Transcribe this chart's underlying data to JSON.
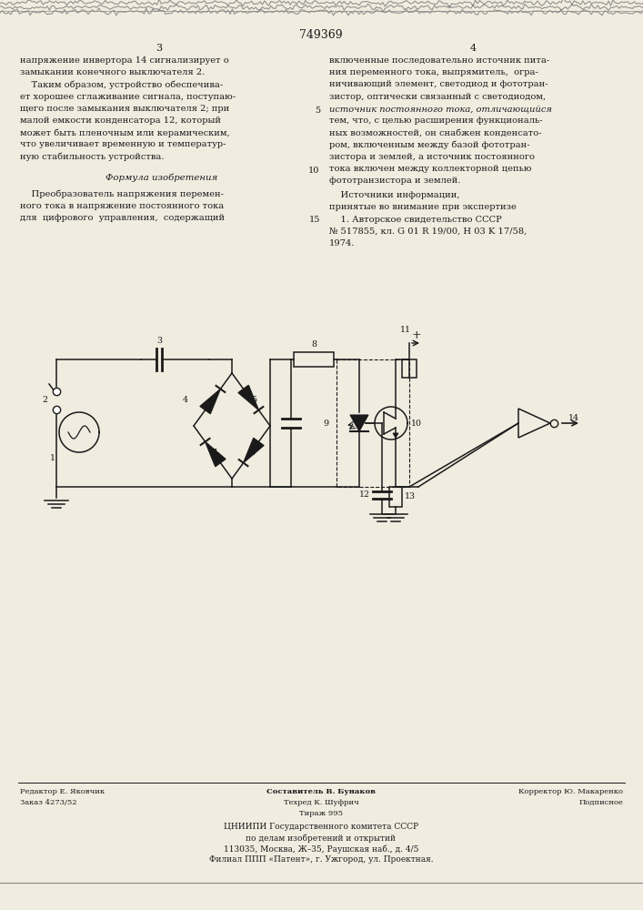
{
  "patent_number": "749369",
  "page_cols": [
    "3",
    "4"
  ],
  "col1_text": [
    "напряжение инвертора 14 сигнализирует о",
    "замыкании конечного выключателя 2.",
    "    Таким образом, устройство обеспечива-",
    "ет хорошее сглаживание сигнала, поступаю-",
    "щего после замыкания выключателя 2; при",
    "малой емкости конденсатора 12, который",
    "может быть пленочным или керамическим,",
    "что увеличивает временную и температур-",
    "ную стабильность устройства."
  ],
  "formula_header": "Формула изобретения",
  "formula_text": [
    "    Преобразователь напряжения перемен-",
    "ного тока в напряжение постоянного тока",
    "для  цифрового  управления,  содержащий"
  ],
  "col2_text_normal": [
    "включенные последовательно источник пита-",
    "ния переменного тока, выпрямитель,  огра-",
    "ничивающий элемент, светодиод и фототран-",
    "зистор, оптически связанный с светодиодом,"
  ],
  "col2_text_italic": "источник постоянного тока, отличающийся",
  "col2_text_rest": [
    "тем, что, с целью расширения функциональ-",
    "ных возможностей, он снабжен конденсато-",
    "ром, включенным между базой фототран-",
    "зистора и землей, а источник постоянного",
    "тока включен между коллекторной цепью",
    "фототранзистора и землей."
  ],
  "sources_header": "    Источники информации,",
  "sources_text": [
    "принятые во внимание при экспертизе",
    "    1. Авторское свидетельство СССР",
    "№ 517855, кл. G 01 R 19/00, H 03 K 17/58,",
    "1974."
  ],
  "footer_left1": "Редактор Е. Яковчик",
  "footer_left2": "Заказ 4273/52",
  "footer_mid1": "Составитель В. Бунаков",
  "footer_mid2": "Техред К. Шуфрич",
  "footer_mid3": "Тираж 995",
  "footer_right1": "Корректор Ю. Макаренко",
  "footer_right2": "Подписное",
  "footer_org1": "ЦНИИПИ Государственного комитета СССР",
  "footer_org2": "по делам изобретений и открытий",
  "footer_addr": "113035, Москва, Ж–35, Раушская наб., д. 4/5",
  "footer_branch": "Филиал ППП «Патент», г. Ужгород, ул. Проектная.",
  "bg_color": "#f0ece0",
  "text_color": "#1a1a1a",
  "circuit_color": "#1a1a1a"
}
